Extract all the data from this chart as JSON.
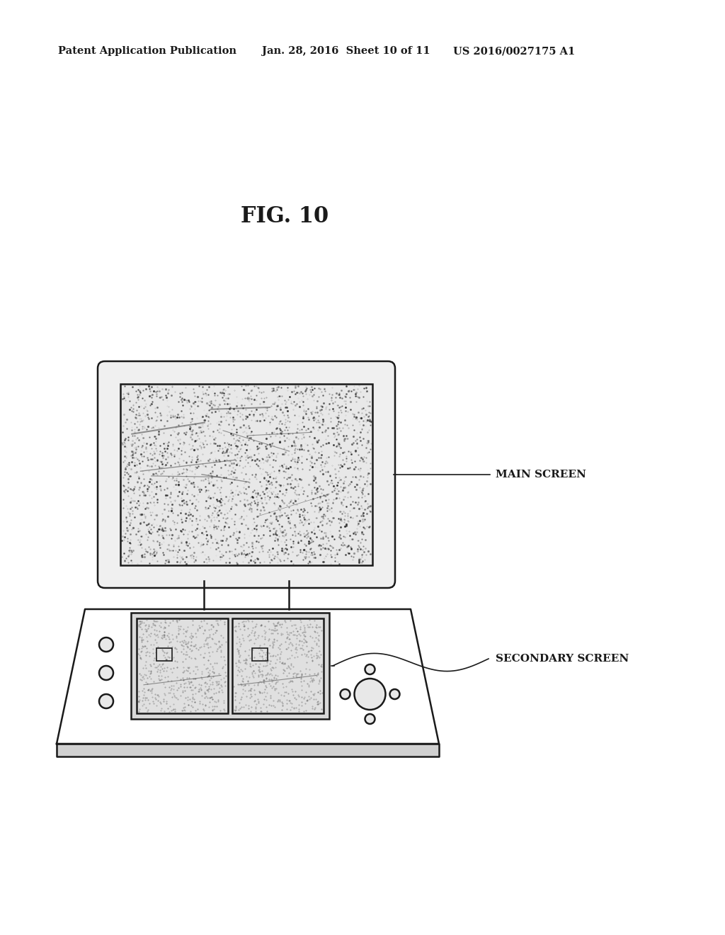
{
  "bg_color": "#ffffff",
  "header_left": "Patent Application Publication",
  "header_mid": "Jan. 28, 2016  Sheet 10 of 11",
  "header_right": "US 2016/0027175 A1",
  "fig_label": "FIG. 10",
  "label_main_screen": "MAIN SCREEN",
  "label_secondary_screen": "SECONDARY SCREEN",
  "line_color": "#1a1a1a",
  "noise_color_light": "#c8c8c8",
  "noise_color_dark": "#555555"
}
